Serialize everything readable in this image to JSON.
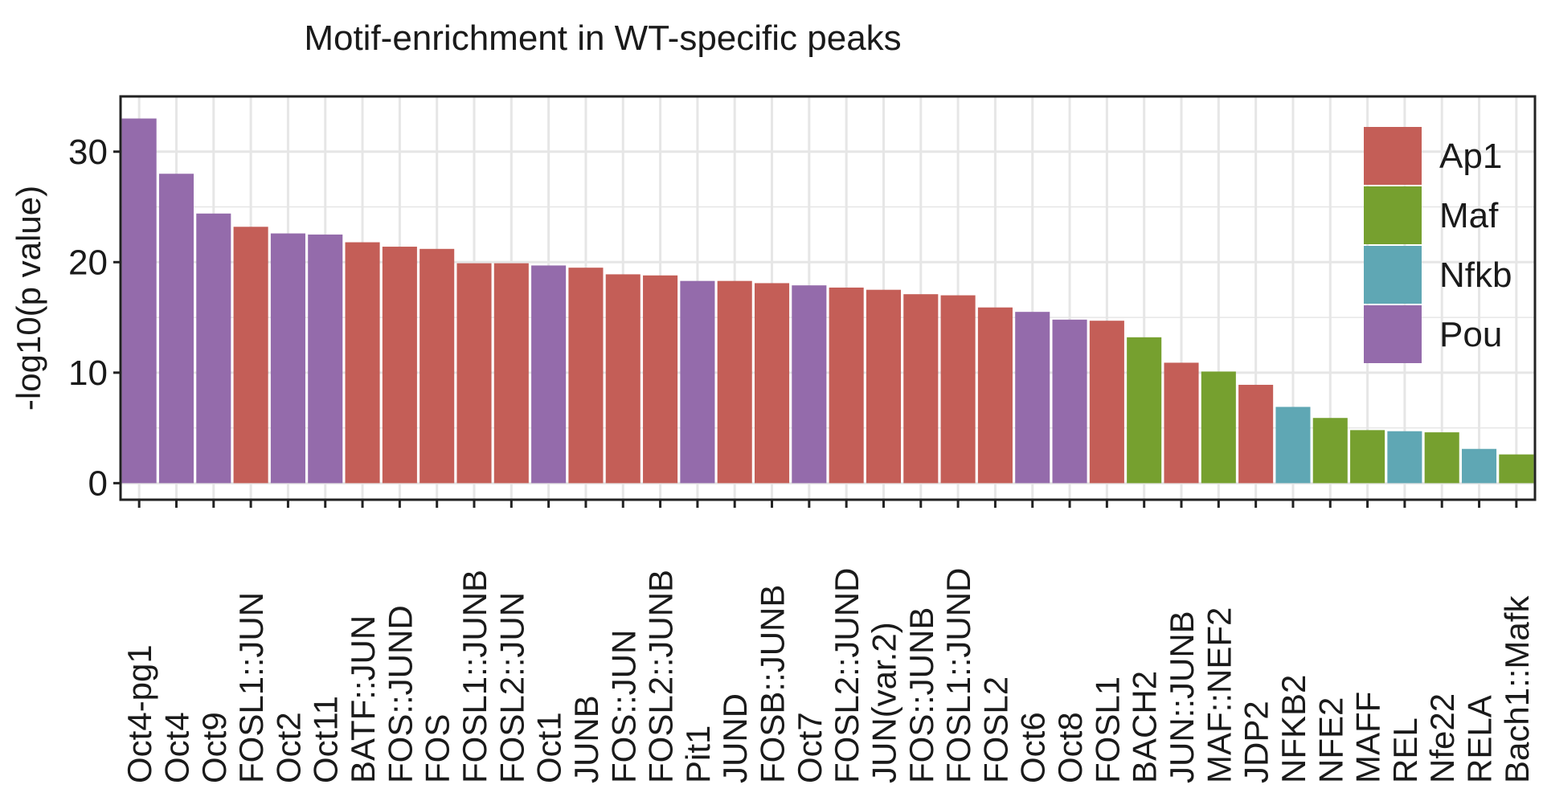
{
  "chart_data": {
    "type": "bar",
    "title": "Motif-enrichment in WT-specific peaks",
    "xlabel": "",
    "ylabel": "-log10(p value)",
    "ylim": [
      -1.5,
      35
    ],
    "yticks": [
      0,
      10,
      20,
      30
    ],
    "grid": true,
    "legend_position": "top-right",
    "groups": [
      {
        "name": "Ap1",
        "color": "#c45e57"
      },
      {
        "name": "Maf",
        "color": "#76a02f"
      },
      {
        "name": "Nfkb",
        "color": "#5fa7b4"
      },
      {
        "name": "Pou",
        "color": "#946bab"
      }
    ],
    "categories": [
      "Oct4-pg1",
      "Oct4",
      "Oct9",
      "FOSL1::JUN",
      "Oct2",
      "Oct11",
      "BATF::JUN",
      "FOS::JUND",
      "FOS",
      "FOSL1::JUNB",
      "FOSL2::JUN",
      "Oct1",
      "JUNB",
      "FOS::JUN",
      "FOSL2::JUNB",
      "Pit1",
      "JUND",
      "FOSB::JUNB",
      "Oct7",
      "FOSL2::JUND",
      "JUN(var.2)",
      "FOS::JUNB",
      "FOSL1::JUND",
      "FOSL2",
      "Oct6",
      "Oct8",
      "FOSL1",
      "BACH2",
      "JUN::JUNB",
      "MAF::NEF2",
      "JDP2",
      "NFKB2",
      "NFE2",
      "MAFF",
      "REL",
      "Nfe22",
      "RELA",
      "Bach1::Mafk"
    ],
    "values": [
      33.0,
      28.0,
      24.4,
      23.2,
      22.6,
      22.5,
      21.8,
      21.4,
      21.2,
      19.9,
      19.9,
      19.7,
      19.5,
      18.9,
      18.8,
      18.3,
      18.3,
      18.1,
      17.9,
      17.7,
      17.5,
      17.1,
      17.0,
      15.9,
      15.5,
      14.8,
      14.7,
      13.2,
      10.9,
      10.1,
      8.9,
      6.9,
      5.9,
      4.8,
      4.7,
      4.6,
      3.1,
      2.6
    ],
    "group_of_bar": [
      "Pou",
      "Pou",
      "Pou",
      "Ap1",
      "Pou",
      "Pou",
      "Ap1",
      "Ap1",
      "Ap1",
      "Ap1",
      "Ap1",
      "Pou",
      "Ap1",
      "Ap1",
      "Ap1",
      "Pou",
      "Ap1",
      "Ap1",
      "Pou",
      "Ap1",
      "Ap1",
      "Ap1",
      "Ap1",
      "Ap1",
      "Pou",
      "Pou",
      "Ap1",
      "Maf",
      "Ap1",
      "Maf",
      "Ap1",
      "Nfkb",
      "Maf",
      "Maf",
      "Nfkb",
      "Maf",
      "Nfkb",
      "Maf"
    ]
  }
}
